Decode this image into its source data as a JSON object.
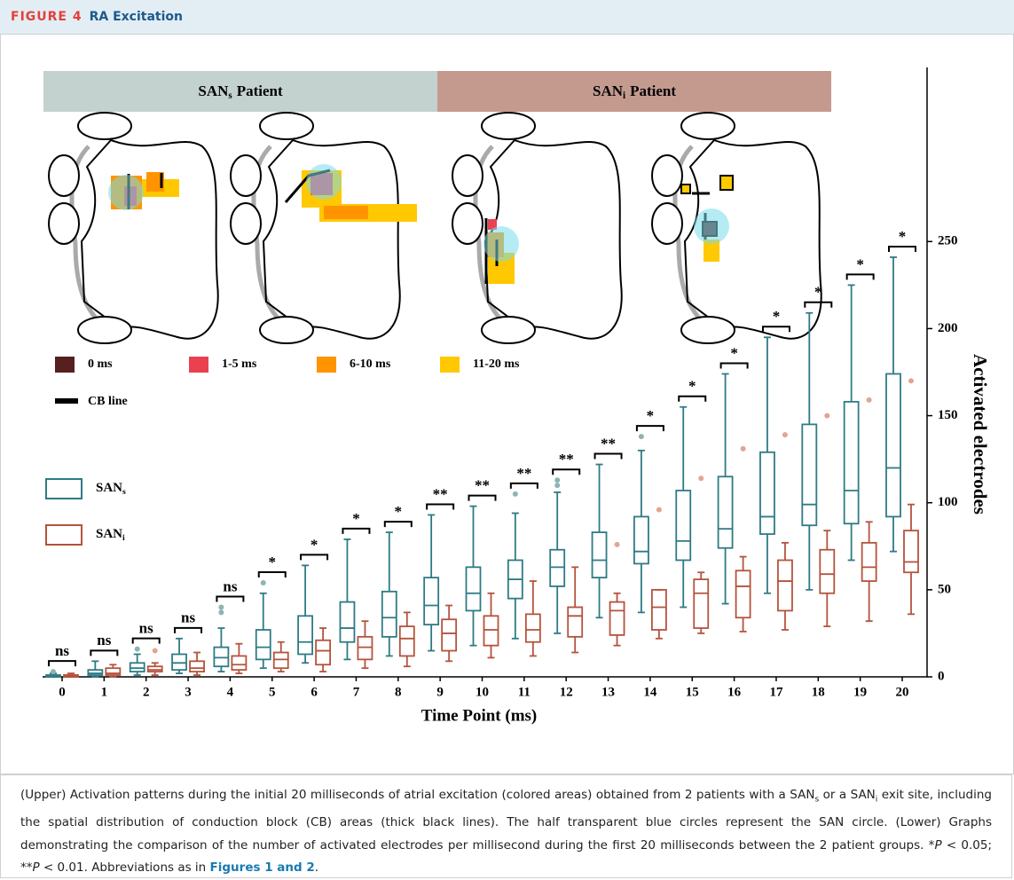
{
  "header": {
    "label": "FIGURE 4",
    "title": "RA Excitation"
  },
  "panels": [
    {
      "base": "SAN",
      "sub": "s",
      "suffix": "Patient",
      "color": "#c3d1cf"
    },
    {
      "base": "SAN",
      "sub": "i",
      "suffix": "Patient",
      "color": "#c49a8f"
    }
  ],
  "map_legend": [
    {
      "label": "0 ms",
      "color": "#55201f"
    },
    {
      "label": "1-5 ms",
      "color": "#ea4150"
    },
    {
      "label": "6-10 ms",
      "color": "#ff9400"
    },
    {
      "label": "11-20 ms",
      "color": "#ffc800"
    },
    {
      "label": "CB line",
      "color": "#000000"
    }
  ],
  "chart_data": {
    "type": "box",
    "x_label": "Time Point (ms)",
    "y_label": "Activated electrodes",
    "categories": [
      "0",
      "1",
      "2",
      "3",
      "4",
      "5",
      "6",
      "7",
      "8",
      "9",
      "10",
      "11",
      "12",
      "13",
      "14",
      "15",
      "16",
      "17",
      "18",
      "19",
      "20"
    ],
    "ylim": [
      0,
      350
    ],
    "yticks": [
      0,
      50,
      100,
      150,
      200,
      250
    ],
    "significance": [
      "ns",
      "ns",
      "ns",
      "ns",
      "ns",
      "*",
      "*",
      "*",
      "*",
      "**",
      "**",
      "**",
      "**",
      "**",
      "*",
      "*",
      "*",
      "*",
      "*",
      "*",
      "*"
    ],
    "series": [
      {
        "name": "SAN",
        "subscript": "s",
        "color": "#2e7b85",
        "flier_color": "#8fb3b3",
        "values": [
          {
            "whislo": 0,
            "q1": 0,
            "med": 1,
            "q3": 1,
            "whishi": 2,
            "fliers": [
              3
            ]
          },
          {
            "whislo": 0,
            "q1": 1,
            "med": 2,
            "q3": 4,
            "whishi": 9,
            "fliers": []
          },
          {
            "whislo": 1,
            "q1": 3,
            "med": 5,
            "q3": 8,
            "whishi": 13,
            "fliers": [
              16
            ]
          },
          {
            "whislo": 2,
            "q1": 4,
            "med": 8,
            "q3": 13,
            "whishi": 22,
            "fliers": []
          },
          {
            "whislo": 3,
            "q1": 6,
            "med": 11,
            "q3": 17,
            "whishi": 28,
            "fliers": [
              37,
              40
            ]
          },
          {
            "whislo": 5,
            "q1": 10,
            "med": 17,
            "q3": 27,
            "whishi": 48,
            "fliers": [
              54
            ]
          },
          {
            "whislo": 8,
            "q1": 13,
            "med": 20,
            "q3": 35,
            "whishi": 64,
            "fliers": []
          },
          {
            "whislo": 10,
            "q1": 20,
            "med": 28,
            "q3": 43,
            "whishi": 79,
            "fliers": []
          },
          {
            "whislo": 12,
            "q1": 23,
            "med": 34,
            "q3": 49,
            "whishi": 83,
            "fliers": []
          },
          {
            "whislo": 15,
            "q1": 30,
            "med": 41,
            "q3": 57,
            "whishi": 93,
            "fliers": []
          },
          {
            "whislo": 18,
            "q1": 38,
            "med": 48,
            "q3": 63,
            "whishi": 98,
            "fliers": []
          },
          {
            "whislo": 22,
            "q1": 45,
            "med": 56,
            "q3": 67,
            "whishi": 94,
            "fliers": [
              105
            ]
          },
          {
            "whislo": 25,
            "q1": 52,
            "med": 63,
            "q3": 73,
            "whishi": 106,
            "fliers": [
              110,
              113
            ]
          },
          {
            "whislo": 34,
            "q1": 57,
            "med": 67,
            "q3": 83,
            "whishi": 122,
            "fliers": []
          },
          {
            "whislo": 37,
            "q1": 65,
            "med": 72,
            "q3": 92,
            "whishi": 130,
            "fliers": [
              138
            ]
          },
          {
            "whislo": 40,
            "q1": 67,
            "med": 78,
            "q3": 107,
            "whishi": 155,
            "fliers": []
          },
          {
            "whislo": 42,
            "q1": 74,
            "med": 85,
            "q3": 115,
            "whishi": 174,
            "fliers": []
          },
          {
            "whislo": 48,
            "q1": 82,
            "med": 92,
            "q3": 129,
            "whishi": 195,
            "fliers": []
          },
          {
            "whislo": 50,
            "q1": 87,
            "med": 99,
            "q3": 145,
            "whishi": 209,
            "fliers": []
          },
          {
            "whislo": 67,
            "q1": 88,
            "med": 107,
            "q3": 158,
            "whishi": 225,
            "fliers": []
          },
          {
            "whislo": 72,
            "q1": 92,
            "med": 120,
            "q3": 174,
            "whishi": 241,
            "fliers": []
          }
        ]
      },
      {
        "name": "SAN",
        "subscript": "i",
        "color": "#b5533c",
        "flier_color": "#e3a493",
        "values": [
          {
            "whislo": 0,
            "q1": 0,
            "med": 1,
            "q3": 1,
            "whishi": 2,
            "fliers": []
          },
          {
            "whislo": 0,
            "q1": 1,
            "med": 2,
            "q3": 5,
            "whishi": 7,
            "fliers": []
          },
          {
            "whislo": 1,
            "q1": 3,
            "med": 4,
            "q3": 6,
            "whishi": 8,
            "fliers": [
              15
            ]
          },
          {
            "whislo": 1,
            "q1": 3,
            "med": 5,
            "q3": 9,
            "whishi": 14,
            "fliers": []
          },
          {
            "whislo": 2,
            "q1": 4,
            "med": 7,
            "q3": 12,
            "whishi": 19,
            "fliers": []
          },
          {
            "whislo": 3,
            "q1": 5,
            "med": 10,
            "q3": 14,
            "whishi": 20,
            "fliers": []
          },
          {
            "whislo": 3,
            "q1": 7,
            "med": 15,
            "q3": 21,
            "whishi": 28,
            "fliers": []
          },
          {
            "whislo": 5,
            "q1": 10,
            "med": 17,
            "q3": 23,
            "whishi": 32,
            "fliers": []
          },
          {
            "whislo": 6,
            "q1": 12,
            "med": 22,
            "q3": 29,
            "whishi": 37,
            "fliers": []
          },
          {
            "whislo": 9,
            "q1": 15,
            "med": 25,
            "q3": 33,
            "whishi": 41,
            "fliers": []
          },
          {
            "whislo": 11,
            "q1": 18,
            "med": 27,
            "q3": 35,
            "whishi": 48,
            "fliers": []
          },
          {
            "whislo": 12,
            "q1": 20,
            "med": 27,
            "q3": 36,
            "whishi": 55,
            "fliers": []
          },
          {
            "whislo": 14,
            "q1": 23,
            "med": 35,
            "q3": 40,
            "whishi": 63,
            "fliers": []
          },
          {
            "whislo": 18,
            "q1": 24,
            "med": 38,
            "q3": 43,
            "whishi": 48,
            "fliers": [
              76
            ]
          },
          {
            "whislo": 22,
            "q1": 27,
            "med": 40,
            "q3": 50,
            "whishi": 50,
            "fliers": [
              96
            ]
          },
          {
            "whislo": 25,
            "q1": 28,
            "med": 48,
            "q3": 56,
            "whishi": 60,
            "fliers": [
              114
            ]
          },
          {
            "whislo": 26,
            "q1": 34,
            "med": 52,
            "q3": 61,
            "whishi": 69,
            "fliers": [
              131
            ]
          },
          {
            "whislo": 27,
            "q1": 38,
            "med": 55,
            "q3": 67,
            "whishi": 77,
            "fliers": [
              139
            ]
          },
          {
            "whislo": 29,
            "q1": 48,
            "med": 59,
            "q3": 73,
            "whishi": 84,
            "fliers": [
              150
            ]
          },
          {
            "whislo": 32,
            "q1": 55,
            "med": 63,
            "q3": 77,
            "whishi": 89,
            "fliers": [
              159
            ]
          },
          {
            "whislo": 36,
            "q1": 60,
            "med": 66,
            "q3": 84,
            "whishi": 99,
            "fliers": [
              170
            ]
          }
        ]
      }
    ]
  },
  "caption": [
    {
      "text": "(Upper) Activation patterns during the initial 20 milliseconds of atrial excitation (colored areas) obtained from 2 patients with a SAN",
      "style": "plain"
    },
    {
      "text": "s",
      "style": "sub"
    },
    {
      "text": " or a SAN",
      "style": "plain"
    },
    {
      "text": "i",
      "style": "sub"
    },
    {
      "text": " exit site, including the spatial distribution of conduction block (CB) areas (thick black lines). The half transparent blue circles represent the SAN circle. (Lower) Graphs demonstrating the comparison of the number of activated electrodes per millisecond during the first 20 milliseconds between the 2 patient groups. *",
      "style": "plain"
    },
    {
      "text": "P",
      "style": "italic"
    },
    {
      "text": " < 0.05; **",
      "style": "plain"
    },
    {
      "text": "P",
      "style": "italic"
    },
    {
      "text": " < 0.01. Abbreviations as in ",
      "style": "plain"
    },
    {
      "text": "Figures 1 and 2",
      "style": "link"
    },
    {
      "text": ".",
      "style": "plain"
    }
  ]
}
